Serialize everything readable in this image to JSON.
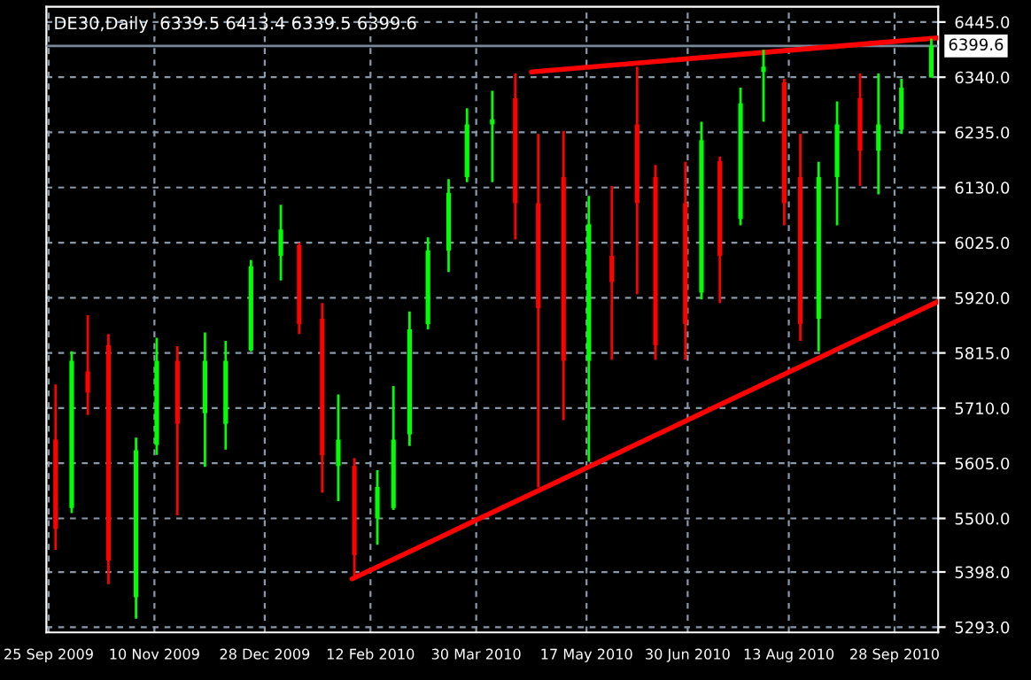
{
  "chart_data": {
    "type": "candlestick",
    "title": "DE30,Daily  6339.5 6413.4 6339.5 6399.6",
    "x": [
      "2009-09-28",
      "2009-10-05",
      "2009-10-12",
      "2009-10-21",
      "2009-11-02",
      "2009-11-11",
      "2009-11-20",
      "2009-12-02",
      "2009-12-11",
      "2009-12-22",
      "2010-01-04",
      "2010-01-12",
      "2010-01-22",
      "2010-01-29",
      "2010-02-05",
      "2010-02-15",
      "2010-02-22",
      "2010-03-01",
      "2010-03-09",
      "2010-03-18",
      "2010-03-26",
      "2010-04-06",
      "2010-04-16",
      "2010-04-26",
      "2010-05-07",
      "2010-05-18",
      "2010-05-28",
      "2010-06-08",
      "2010-06-16",
      "2010-06-29",
      "2010-07-06",
      "2010-07-14",
      "2010-07-23",
      "2010-08-02",
      "2010-08-11",
      "2010-08-18",
      "2010-08-26",
      "2010-09-03",
      "2010-09-13",
      "2010-09-21",
      "2010-10-01",
      "2010-10-14"
    ],
    "ohlc": [
      [
        5650,
        5755,
        5440,
        5480
      ],
      [
        5520,
        5818,
        5510,
        5800
      ],
      [
        5780,
        5887,
        5697,
        5740
      ],
      [
        5830,
        5851,
        5375,
        5420
      ],
      [
        5350,
        5654,
        5309,
        5630
      ],
      [
        5640,
        5844,
        5621,
        5800
      ],
      [
        5800,
        5828,
        5506,
        5680
      ],
      [
        5700,
        5854,
        5598,
        5800
      ],
      [
        5680,
        5838,
        5631,
        5800
      ],
      [
        5820,
        5992,
        5818,
        5980
      ],
      [
        6000,
        6097,
        5953,
        6050
      ],
      [
        6020,
        6025,
        5851,
        5870
      ],
      [
        5880,
        5910,
        5549,
        5620
      ],
      [
        5600,
        5736,
        5533,
        5650
      ],
      [
        5600,
        5615,
        5385,
        5430
      ],
      [
        5500,
        5592,
        5450,
        5560
      ],
      [
        5520,
        5752,
        5516,
        5650
      ],
      [
        5660,
        5894,
        5638,
        5860
      ],
      [
        5870,
        6035,
        5860,
        6010
      ],
      [
        6010,
        6146,
        5969,
        6120
      ],
      [
        6150,
        6281,
        6140,
        6250
      ],
      [
        6250,
        6314,
        6140,
        6260
      ],
      [
        6300,
        6347,
        6031,
        6100
      ],
      [
        6100,
        6232,
        5559,
        5900
      ],
      [
        6150,
        6238,
        5687,
        5800
      ],
      [
        5800,
        6114,
        5608,
        6060
      ],
      [
        6000,
        6133,
        5802,
        5950
      ],
      [
        6250,
        6360,
        5927,
        6100
      ],
      [
        6150,
        6173,
        5802,
        5830
      ],
      [
        6100,
        6179,
        5802,
        5870
      ],
      [
        5930,
        6255,
        5917,
        6220
      ],
      [
        6180,
        6189,
        5910,
        6000
      ],
      [
        6070,
        6320,
        6058,
        6290
      ],
      [
        6350,
        6392,
        6255,
        6360
      ],
      [
        6330,
        6337,
        6058,
        6100
      ],
      [
        6150,
        6232,
        5838,
        5870
      ],
      [
        5880,
        6179,
        5818,
        6150
      ],
      [
        6150,
        6294,
        6058,
        6250
      ],
      [
        6300,
        6347,
        6133,
        6200
      ],
      [
        6200,
        6347,
        6117,
        6250
      ],
      [
        6240,
        6337,
        6232,
        6320
      ],
      [
        6339.5,
        6413.4,
        6339.5,
        6399.6
      ]
    ],
    "colors": [
      "#ff0000",
      "#00ff00",
      "#ff0000",
      "#ff0000",
      "#00ff00",
      "#00ff00",
      "#ff0000",
      "#00ff00",
      "#00ff00",
      "#00ff00",
      "#00ff00",
      "#ff0000",
      "#ff0000",
      "#00ff00",
      "#ff0000",
      "#00ff00",
      "#00ff00",
      "#00ff00",
      "#00ff00",
      "#00ff00",
      "#00ff00",
      "#00ff00",
      "#ff0000",
      "#ff0000",
      "#ff0000",
      "#00ff00",
      "#ff0000",
      "#ff0000",
      "#ff0000",
      "#ff0000",
      "#00ff00",
      "#ff0000",
      "#00ff00",
      "#00ff00",
      "#ff0000",
      "#ff0000",
      "#00ff00",
      "#00ff00",
      "#ff0000",
      "#00ff00",
      "#00ff00",
      "#00ff00"
    ],
    "series": [
      {
        "type": "line",
        "color": "#ff0000",
        "x": [
          "2010-04-23",
          "2010-10-17"
        ],
        "values": [
          6350,
          6415
        ]
      },
      {
        "type": "line",
        "color": "#ff0000",
        "x": [
          "2010-02-04",
          "2010-10-17"
        ],
        "values": [
          5385,
          5913
        ]
      }
    ],
    "marker": "none",
    "line_style": "solid",
    "ref_lines": [
      {
        "axis": "y",
        "value": 6399.6,
        "label": "6399.6",
        "color": "#778899"
      }
    ],
    "xlim": [
      "2009-09-24",
      "2010-10-17"
    ],
    "xticks": [
      {
        "value": "2009-09-25",
        "label": "25 Sep 2009"
      },
      {
        "value": "2009-11-10",
        "label": "10 Nov 2009"
      },
      {
        "value": "2009-12-28",
        "label": "28 Dec 2009"
      },
      {
        "value": "2010-02-12",
        "label": "12 Feb 2010"
      },
      {
        "value": "2010-03-30",
        "label": "30 Mar 2010"
      },
      {
        "value": "2010-05-17",
        "label": "17 May 2010"
      },
      {
        "value": "2010-06-30",
        "label": "30 Jun 2010"
      },
      {
        "value": "2010-08-13",
        "label": "13 Aug 2010"
      },
      {
        "value": "2010-09-28",
        "label": "28 Sep 2010"
      }
    ],
    "ylim": [
      5283,
      6474
    ],
    "yticks": [
      {
        "value": 5293,
        "label": "5293.0"
      },
      {
        "value": 5398,
        "label": "5398.0"
      },
      {
        "value": 5500,
        "label": "5500.0"
      },
      {
        "value": 5605,
        "label": "5605.0"
      },
      {
        "value": 5710,
        "label": "5710.0"
      },
      {
        "value": 5815,
        "label": "5815.0"
      },
      {
        "value": 5920,
        "label": "5920.0"
      },
      {
        "value": 6025,
        "label": "6025.0"
      },
      {
        "value": 6130,
        "label": "6130.0"
      },
      {
        "value": 6235,
        "label": "6235.0"
      },
      {
        "value": 6340,
        "label": "6340.0"
      },
      {
        "value": 6445,
        "label": "6445.0"
      }
    ],
    "grid": true
  }
}
